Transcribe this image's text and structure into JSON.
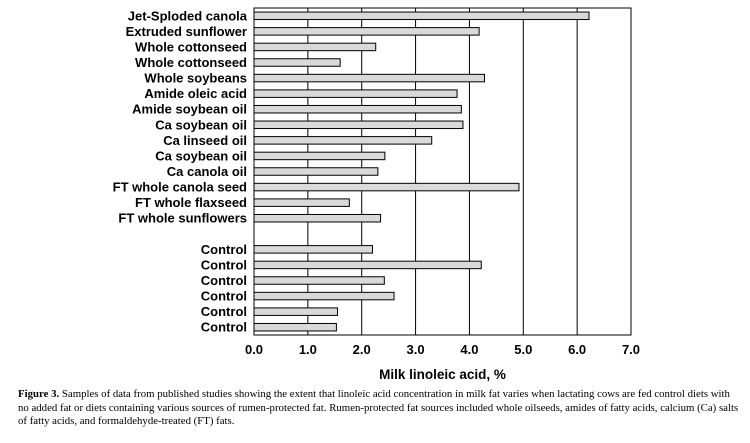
{
  "chart_data": {
    "type": "bar",
    "orientation": "horizontal",
    "xlabel": "Milk linoleic acid, %",
    "xlim": [
      0,
      7
    ],
    "xticks": [
      "0.0",
      "1.0",
      "2.0",
      "3.0",
      "4.0",
      "5.0",
      "6.0",
      "7.0"
    ],
    "grid": true,
    "bar_color": "#d9d9d9",
    "categories": [
      "Jet-Sploded canola",
      "Extruded sunflower",
      "Whole cottonseed",
      "Whole cottonseed",
      "Whole soybeans",
      "Amide oleic acid",
      "Amide soybean oil",
      "Ca soybean oil",
      "Ca linseed oil",
      "Ca soybean oil",
      "Ca canola oil",
      "FT whole canola seed",
      "FT whole flaxseed",
      "FT whole sunflowers",
      "",
      "Control",
      "Control",
      "Control",
      "Control",
      "Control",
      "Control"
    ],
    "values": [
      6.22,
      4.18,
      2.26,
      1.6,
      4.28,
      3.77,
      3.85,
      3.88,
      3.3,
      2.43,
      2.3,
      4.92,
      1.77,
      2.35,
      null,
      2.2,
      4.22,
      2.42,
      2.6,
      1.55,
      1.53
    ]
  },
  "caption": {
    "label": "Figure 3.",
    "text": "Samples of data from published studies showing the extent that linoleic acid concentration in milk fat varies when lactating cows are fed control diets with no added fat or diets containing various sources of rumen-protected fat. Rumen-protected fat sources included whole oilseeds, amides of fatty acids, calcium (Ca) salts of fatty acids, and formaldehyde-treated (FT) fats."
  }
}
